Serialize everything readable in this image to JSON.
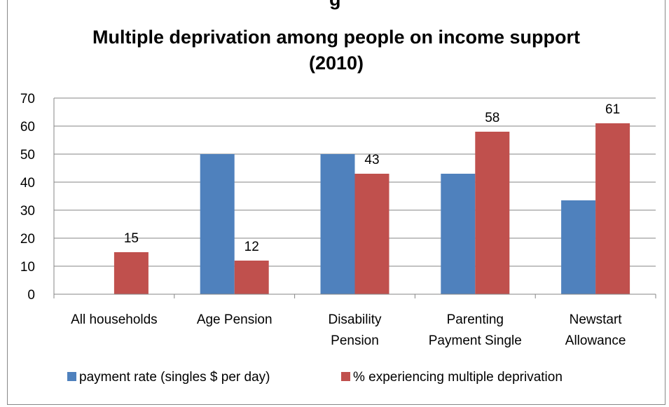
{
  "chart_data": {
    "type": "bar",
    "title_lines": [
      "Multiple deprivation among people on income support",
      "(2010)"
    ],
    "top_fragment": "g",
    "categories": [
      [
        "All households"
      ],
      [
        "Age Pension"
      ],
      [
        "Disability",
        "Pension"
      ],
      [
        "Parenting",
        "Payment Single"
      ],
      [
        "Newstart",
        "Allowance"
      ]
    ],
    "series": [
      {
        "name": "payment rate (singles $ per day)",
        "color": "#4f81bd",
        "values": [
          null,
          50,
          50,
          43,
          33.5
        ],
        "labels": [
          null,
          null,
          null,
          null,
          null
        ]
      },
      {
        "name": "% experiencing multiple deprivation",
        "color": "#c0504d",
        "values": [
          15,
          12,
          43,
          58,
          61
        ],
        "labels": [
          "15",
          "12",
          "43",
          "58",
          "61"
        ]
      }
    ],
    "ylim": [
      0,
      70
    ],
    "yticks": [
      0,
      10,
      20,
      30,
      40,
      50,
      60,
      70
    ],
    "grid": true,
    "legend_position": "bottom"
  }
}
